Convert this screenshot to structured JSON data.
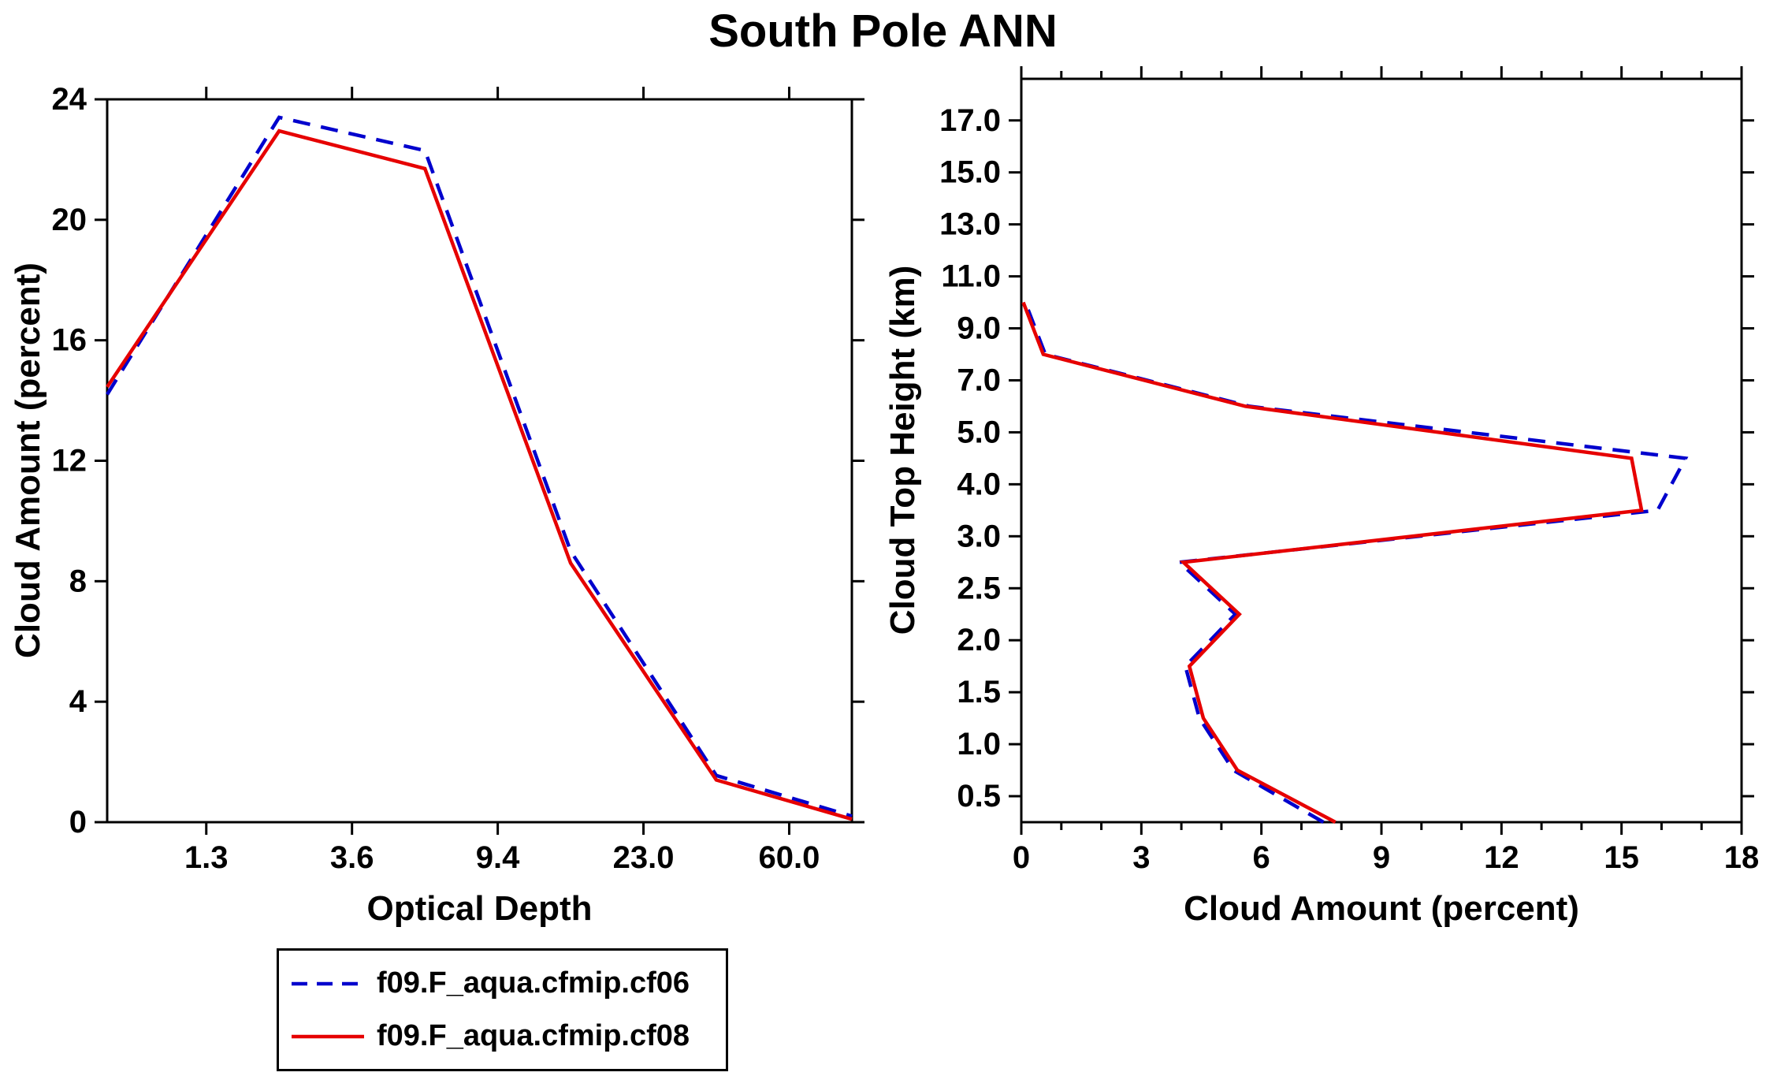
{
  "title": "South Pole ANN",
  "colors": {
    "series_blue": "#0000cd",
    "series_red": "#e60000",
    "axis": "#000000",
    "background": "#ffffff"
  },
  "legend": {
    "entries": [
      {
        "label": "f09.F_aqua.cfmip.cf06",
        "line_style": "dashed",
        "color": "#0000cd"
      },
      {
        "label": "f09.F_aqua.cfmip.cf08",
        "line_style": "solid",
        "color": "#e60000"
      }
    ]
  },
  "chart_data": [
    {
      "type": "line",
      "panel": "left",
      "xlabel": "Optical Depth",
      "ylabel": "Cloud Amount (percent)",
      "x_axis": {
        "scale": "log-binned-category",
        "range": [
          0.32,
          5.43
        ],
        "major_ticks": [
          {
            "pos": 1,
            "label": "1.3"
          },
          {
            "pos": 2,
            "label": "3.6"
          },
          {
            "pos": 3,
            "label": "9.4"
          },
          {
            "pos": 4,
            "label": "23.0"
          },
          {
            "pos": 5,
            "label": "60.0"
          }
        ],
        "minor_ticks": []
      },
      "y_axis": {
        "range": [
          0,
          24
        ],
        "major_ticks": [
          {
            "pos": 0,
            "label": "0"
          },
          {
            "pos": 4,
            "label": "4"
          },
          {
            "pos": 8,
            "label": "8"
          },
          {
            "pos": 12,
            "label": "12"
          },
          {
            "pos": 16,
            "label": "16"
          },
          {
            "pos": 20,
            "label": "20"
          },
          {
            "pos": 24,
            "label": "24"
          }
        ],
        "minor_ticks": []
      },
      "series": [
        {
          "name": "f09.F_aqua.cfmip.cf06",
          "color": "#0000cd",
          "dashed": true,
          "points": [
            [
              0.32,
              14.2
            ],
            [
              1.5,
              23.4
            ],
            [
              2.5,
              22.3
            ],
            [
              3.5,
              9.0
            ],
            [
              4.5,
              1.55
            ],
            [
              5.43,
              0.2
            ]
          ]
        },
        {
          "name": "f09.F_aqua.cfmip.cf08",
          "color": "#e60000",
          "dashed": false,
          "points": [
            [
              0.32,
              14.45
            ],
            [
              1.5,
              22.95
            ],
            [
              2.5,
              21.7
            ],
            [
              3.5,
              8.6
            ],
            [
              4.5,
              1.4
            ],
            [
              5.43,
              0.1
            ]
          ]
        }
      ]
    },
    {
      "type": "line",
      "panel": "right",
      "xlabel": "Cloud Amount (percent)",
      "ylabel": "Cloud Top Height (km)",
      "x_axis": {
        "range": [
          0,
          18
        ],
        "major_ticks": [
          {
            "pos": 0,
            "label": "0"
          },
          {
            "pos": 3,
            "label": "3"
          },
          {
            "pos": 6,
            "label": "6"
          },
          {
            "pos": 9,
            "label": "9"
          },
          {
            "pos": 12,
            "label": "12"
          },
          {
            "pos": 15,
            "label": "15"
          },
          {
            "pos": 18,
            "label": "18"
          }
        ],
        "minor_ticks": [
          1,
          2,
          4,
          5,
          7,
          8,
          10,
          11,
          13,
          14,
          16,
          17
        ]
      },
      "y_axis": {
        "scale": "category-height-bins",
        "range": [
          -0.5,
          13.8
        ],
        "major_ticks": [
          {
            "pos": 0,
            "label": "0.5"
          },
          {
            "pos": 1,
            "label": "1.0"
          },
          {
            "pos": 2,
            "label": "1.5"
          },
          {
            "pos": 3,
            "label": "2.0"
          },
          {
            "pos": 4,
            "label": "2.5"
          },
          {
            "pos": 5,
            "label": "3.0"
          },
          {
            "pos": 6,
            "label": "4.0"
          },
          {
            "pos": 7,
            "label": "5.0"
          },
          {
            "pos": 8,
            "label": "7.0"
          },
          {
            "pos": 9,
            "label": "9.0"
          },
          {
            "pos": 10,
            "label": "11.0"
          },
          {
            "pos": 11,
            "label": "13.0"
          },
          {
            "pos": 12,
            "label": "15.0"
          },
          {
            "pos": 13,
            "label": "17.0"
          }
        ],
        "minor_ticks": []
      },
      "series": [
        {
          "name": "f09.F_aqua.cfmip.cf06",
          "color": "#0000cd",
          "dashed": true,
          "points": [
            [
              7.55,
              -0.5
            ],
            [
              5.3,
              0.5
            ],
            [
              4.45,
              1.5
            ],
            [
              4.1,
              2.5
            ],
            [
              5.35,
              3.5
            ],
            [
              3.95,
              4.5
            ],
            [
              15.9,
              5.5
            ],
            [
              16.6,
              6.5
            ],
            [
              5.7,
              7.5
            ],
            [
              0.6,
              8.5
            ],
            [
              0.1,
              9.5
            ]
          ]
        },
        {
          "name": "f09.F_aqua.cfmip.cf08",
          "color": "#e60000",
          "dashed": false,
          "points": [
            [
              7.85,
              -0.5
            ],
            [
              5.4,
              0.5
            ],
            [
              4.55,
              1.5
            ],
            [
              4.2,
              2.5
            ],
            [
              5.45,
              3.5
            ],
            [
              4.05,
              4.5
            ],
            [
              15.5,
              5.5
            ],
            [
              15.25,
              6.5
            ],
            [
              5.6,
              7.5
            ],
            [
              0.55,
              8.5
            ],
            [
              0.05,
              9.5
            ]
          ]
        }
      ]
    }
  ]
}
